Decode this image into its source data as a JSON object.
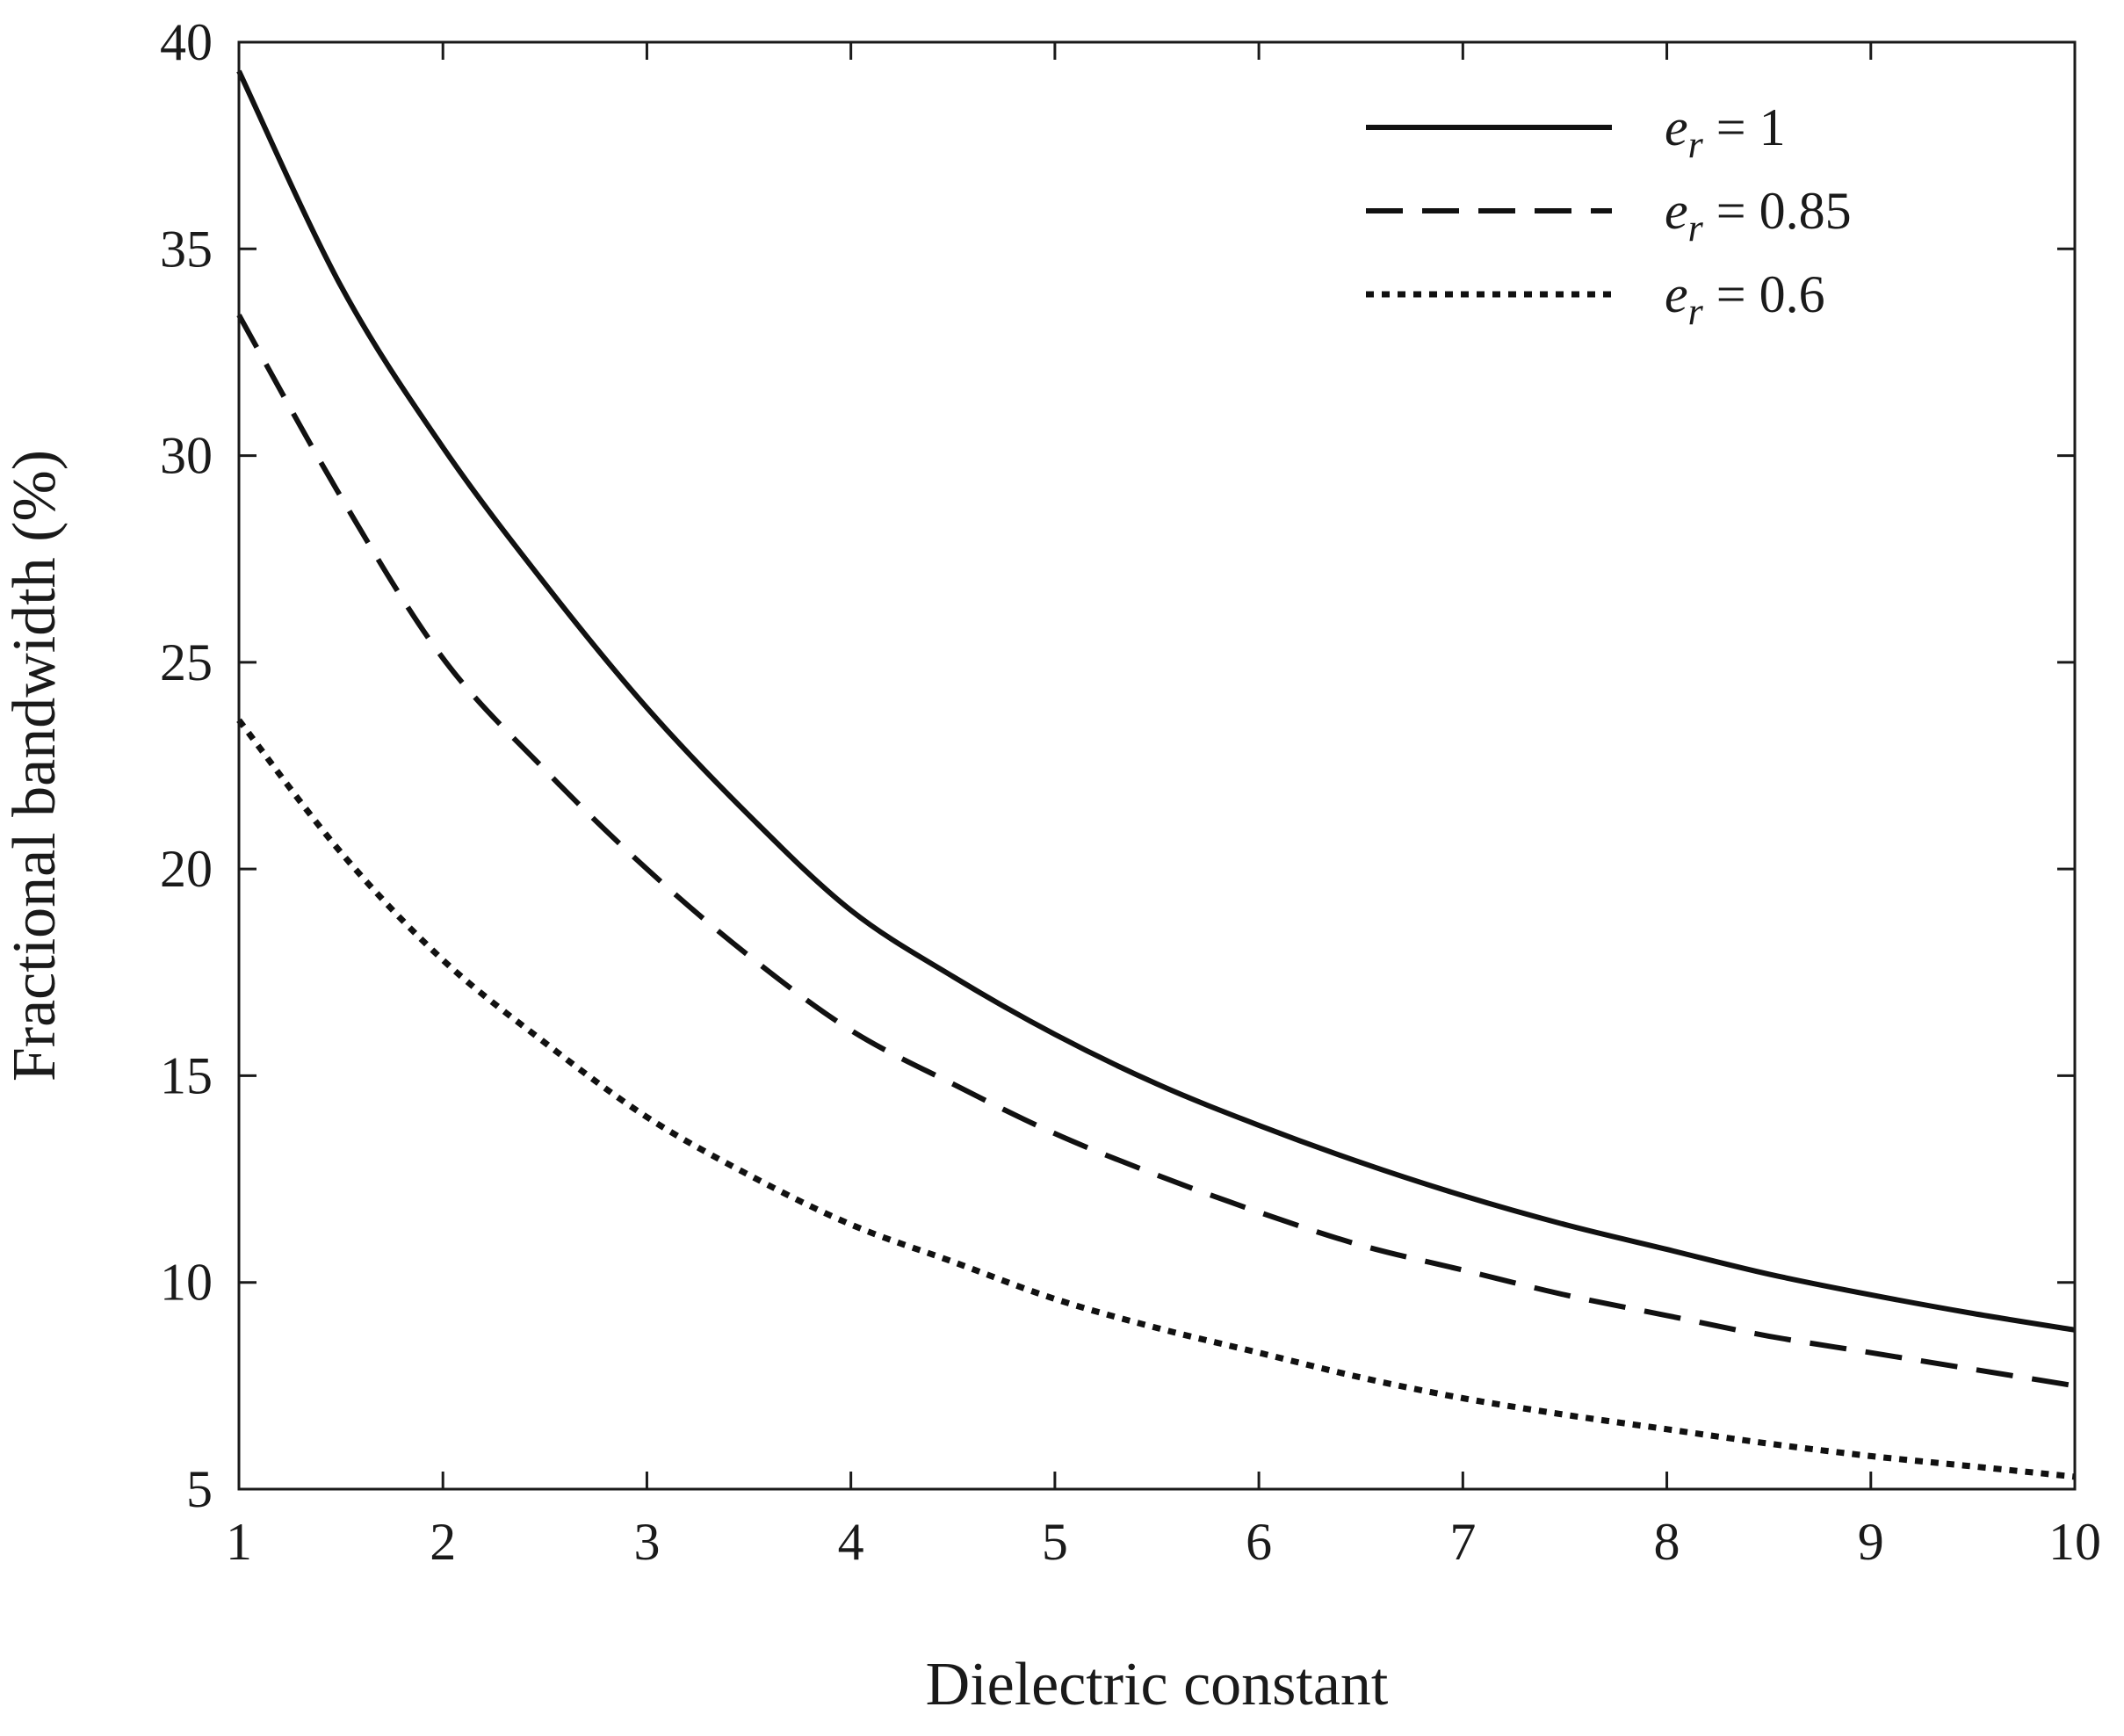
{
  "chart_data": {
    "type": "line",
    "title": "",
    "xlabel": "Dielectric constant",
    "ylabel": "Fractional bandwidth (%)",
    "xlim": [
      1,
      10
    ],
    "ylim": [
      5,
      40
    ],
    "xticks": [
      1,
      2,
      3,
      4,
      5,
      6,
      7,
      8,
      9,
      10
    ],
    "yticks": [
      5,
      10,
      15,
      20,
      25,
      30,
      35,
      40
    ],
    "xtick_labels": [
      "1",
      "2",
      "3",
      "4",
      "5",
      "6",
      "7",
      "8",
      "9",
      "10"
    ],
    "ytick_labels": [
      "5",
      "10",
      "15",
      "20",
      "25",
      "30",
      "35",
      "40"
    ],
    "grid": false,
    "legend_position": "top-right",
    "x": [
      1,
      1.5,
      2,
      2.5,
      3,
      3.5,
      4,
      4.5,
      5,
      5.5,
      6,
      6.5,
      7,
      7.5,
      8,
      8.5,
      9,
      9.5,
      10
    ],
    "series": [
      {
        "name": "e_r = 1",
        "label_var": "e",
        "label_sub": "r",
        "label_rest": " = 1",
        "style": "solid",
        "values": [
          39.3,
          34.1,
          30.2,
          26.9,
          23.9,
          21.3,
          19.0,
          17.4,
          16.0,
          14.8,
          13.8,
          12.9,
          12.1,
          11.4,
          10.8,
          10.2,
          9.7,
          9.25,
          8.85
        ]
      },
      {
        "name": "e_r = 0.85",
        "label_var": "e",
        "label_sub": "r",
        "label_rest": " = 0.85",
        "style": "dashed",
        "values": [
          33.4,
          29.0,
          25.1,
          22.4,
          20.0,
          17.9,
          16.1,
          14.8,
          13.6,
          12.6,
          11.7,
          10.9,
          10.3,
          9.7,
          9.2,
          8.7,
          8.3,
          7.9,
          7.5
        ]
      },
      {
        "name": "e_r = 0.6",
        "label_var": "e",
        "label_sub": "r",
        "label_rest": " = 0.6",
        "style": "dotted",
        "values": [
          23.6,
          20.4,
          17.8,
          15.8,
          14.0,
          12.6,
          11.4,
          10.5,
          9.6,
          8.9,
          8.3,
          7.7,
          7.2,
          6.8,
          6.45,
          6.1,
          5.8,
          5.55,
          5.3
        ]
      }
    ]
  }
}
